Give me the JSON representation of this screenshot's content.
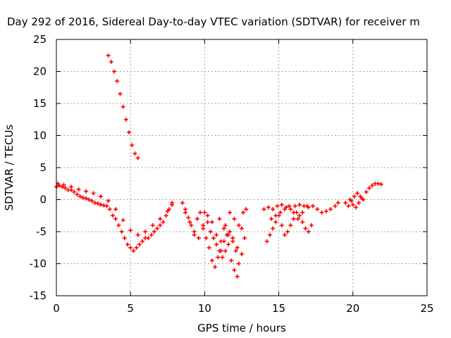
{
  "chart_data": {
    "type": "scatter",
    "title": "Day 292 of 2016, Sidereal Day-to-day VTEC variation (SDTVAR) for receiver m",
    "xlabel": "GPS time / hours",
    "ylabel": "SDTVAR / TECUs",
    "xlim": [
      0,
      25
    ],
    "ylim": [
      -15,
      25
    ],
    "xticks": [
      "0",
      "5",
      "10",
      "15",
      "20",
      "25"
    ],
    "yticks": [
      "-15",
      "-10",
      "-5",
      "0",
      "5",
      "10",
      "15",
      "20",
      "25"
    ],
    "grid": true,
    "marker": "+",
    "color": "#ff0000",
    "series": [
      {
        "x": [
          3.5,
          3.7,
          3.9,
          4.1,
          4.3,
          4.5,
          4.7,
          4.9,
          5.1,
          5.3,
          5.5
        ],
        "y": [
          22.5,
          21.5,
          20,
          18.5,
          16.5,
          14.5,
          12.5,
          10.5,
          8.5,
          7.2,
          6.5
        ]
      },
      {
        "x": [
          0,
          0.2,
          0.4,
          0.6,
          0.8,
          1.0,
          1.2,
          1.4,
          1.6,
          1.8,
          2.0,
          2.2,
          2.4,
          2.6,
          2.8,
          3.0,
          3.2,
          3.4,
          3.6,
          3.8,
          4.0,
          4.2,
          4.4,
          4.6,
          4.8,
          5.0,
          5.2,
          5.4,
          5.6,
          5.8,
          6.0,
          6.2,
          6.4,
          6.6,
          6.8,
          7.0,
          7.2,
          7.4,
          7.6,
          7.8
        ],
        "y": [
          2,
          2.2,
          2,
          1.8,
          1.5,
          1.5,
          1.2,
          0.8,
          0.5,
          0.3,
          0.2,
          0,
          -0.2,
          -0.5,
          -0.6,
          -0.8,
          -0.9,
          -1,
          -1.5,
          -2.5,
          -3,
          -4,
          -5,
          -6,
          -7,
          -7.5,
          -8,
          -7.5,
          -7,
          -6.5,
          -6,
          -6,
          -5.5,
          -5,
          -4.5,
          -4,
          -3.5,
          -2.5,
          -1.5,
          -0.5
        ]
      },
      {
        "x": [
          0.1,
          0.5,
          1.0,
          1.5,
          2.0,
          2.5,
          3.0,
          3.5,
          4.0,
          4.5,
          5.0,
          5.5,
          6.0,
          6.5,
          7.0,
          7.5,
          7.8
        ],
        "y": [
          2.5,
          2.3,
          2.0,
          1.6,
          1.3,
          1.0,
          0.5,
          -0.2,
          -1.5,
          -3.2,
          -4.8,
          -5.5,
          -5.0,
          -4.0,
          -3.0,
          -1.8,
          -0.8
        ]
      },
      {
        "x": [
          8.5,
          8.7,
          8.9,
          9.1,
          9.3,
          9.5,
          9.7,
          9.9,
          10.1,
          10.3,
          10.5,
          10.7,
          10.9,
          11.1,
          11.3,
          11.5,
          11.7,
          11.9,
          12.1,
          12.3,
          12.5,
          12.7
        ],
        "y": [
          -0.5,
          -1.5,
          -2.8,
          -4.0,
          -5.5,
          -3.0,
          -2.0,
          -4.0,
          -6.0,
          -7.5,
          -9.5,
          -10.5,
          -9.0,
          -8.0,
          -6.5,
          -5.5,
          -5.0,
          -6.0,
          -8.0,
          -10.0,
          -8.5,
          -6.0
        ]
      },
      {
        "x": [
          8.7,
          9.0,
          9.3,
          9.6,
          9.9,
          10.2,
          10.5,
          10.8,
          11.1,
          11.4,
          11.7,
          12.0,
          12.3,
          12.6
        ],
        "y": [
          -2.0,
          -3.5,
          -5.0,
          -6.0,
          -4.5,
          -2.5,
          -3.5,
          -5.5,
          -6.5,
          -4.0,
          -2.0,
          -3.0,
          -4.0,
          -2.0
        ]
      },
      {
        "x": [
          10.0,
          10.2,
          10.4,
          10.6,
          10.8,
          11.0,
          11.2,
          11.4,
          11.6,
          11.8,
          12.0,
          12.2
        ],
        "y": [
          -2.0,
          -3.5,
          -5.0,
          -6.0,
          -7.0,
          -8.0,
          -9.0,
          -8.0,
          -7.0,
          -9.5,
          -11.0,
          -12.0
        ]
      },
      {
        "x": [
          11.0,
          11.3,
          11.6,
          11.9,
          12.2,
          12.5,
          12.8
        ],
        "y": [
          -3.0,
          -4.5,
          -5.5,
          -6.5,
          -7.5,
          -4.5,
          -1.5
        ]
      },
      {
        "x": [
          14.0,
          14.3,
          14.6,
          14.9,
          15.2,
          15.5,
          15.8,
          16.1,
          16.4,
          16.7,
          17.0,
          17.3,
          17.6,
          17.9,
          18.2,
          18.5,
          18.8,
          19.0
        ],
        "y": [
          -1.5,
          -1.2,
          -1.5,
          -1.0,
          -0.8,
          -1.2,
          -1.5,
          -1.0,
          -0.8,
          -1.0,
          -1.2,
          -1.0,
          -1.5,
          -2.0,
          -1.8,
          -1.5,
          -1.0,
          -0.5
        ]
      },
      {
        "x": [
          14.2,
          14.4,
          14.6,
          14.8,
          15.0,
          15.2,
          15.4,
          15.6,
          15.8,
          16.0,
          16.2,
          16.4,
          16.6,
          16.8,
          17.0,
          17.2
        ],
        "y": [
          -6.5,
          -5.5,
          -4.5,
          -3.5,
          -2.5,
          -4.0,
          -5.5,
          -5.0,
          -4.0,
          -3.0,
          -2.0,
          -2.5,
          -3.5,
          -4.5,
          -5.0,
          -4.0
        ]
      },
      {
        "x": [
          14.5,
          14.8,
          15.1,
          15.4,
          15.7,
          16.0,
          16.3,
          16.6,
          16.9
        ],
        "y": [
          -3.0,
          -2.5,
          -2.0,
          -1.5,
          -1.0,
          -2.0,
          -3.0,
          -2.0,
          -1.0
        ]
      },
      {
        "x": [
          19.5,
          19.7,
          19.9,
          20.1,
          20.3,
          20.5,
          20.7,
          20.9,
          21.1,
          21.3,
          21.5,
          21.7,
          21.9
        ],
        "y": [
          -0.5,
          -1.0,
          -0.2,
          0.5,
          1.0,
          0.5,
          0,
          1.2,
          1.8,
          2.2,
          2.5,
          2.5,
          2.4
        ]
      },
      {
        "x": [
          19.8,
          20.0,
          20.2,
          20.4,
          20.6
        ],
        "y": [
          0,
          -0.8,
          -1.2,
          -0.5,
          0.2
        ]
      }
    ]
  }
}
